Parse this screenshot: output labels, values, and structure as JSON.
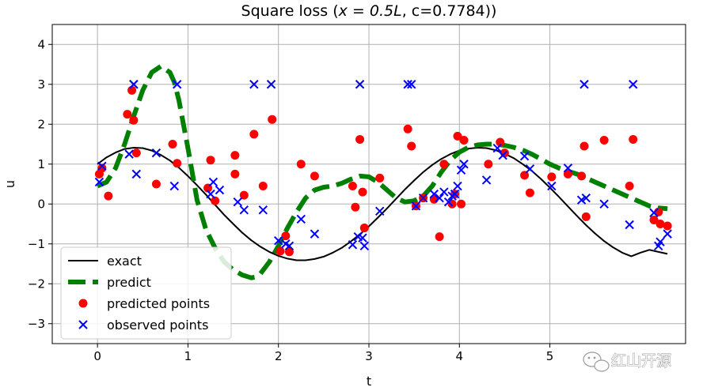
{
  "chart_data": {
    "type": "scatter",
    "title_prefix": "Square loss (",
    "title_math": "x = 0.5L",
    "title_suffix": ", c=0.7784))",
    "xlabel": "t",
    "ylabel": "u",
    "xlim": [
      -0.5,
      6.5
    ],
    "ylim": [
      -3.5,
      4.5
    ],
    "xticks": [
      0,
      1,
      2,
      3,
      4,
      5
    ],
    "yticks": [
      -3,
      -2,
      -1,
      0,
      1,
      2,
      3,
      4
    ],
    "xtick_labels": [
      "0",
      "1",
      "2",
      "3",
      "4",
      "5"
    ],
    "ytick_labels": [
      "−3",
      "−2",
      "−1",
      "0",
      "1",
      "2",
      "3",
      "4"
    ],
    "grid": true,
    "legend_position": "lower-left",
    "series": [
      {
        "name": "exact",
        "kind": "line",
        "color": "#000000",
        "x": [
          0.0,
          0.1,
          0.2,
          0.3,
          0.4,
          0.5,
          0.6,
          0.7,
          0.8,
          0.9,
          1.0,
          1.1,
          1.2,
          1.3,
          1.4,
          1.5,
          1.6,
          1.7,
          1.8,
          1.9,
          2.0,
          2.1,
          2.2,
          2.3,
          2.4,
          2.5,
          2.6,
          2.7,
          2.8,
          2.9,
          3.0,
          3.1,
          3.2,
          3.3,
          3.4,
          3.5,
          3.6,
          3.7,
          3.8,
          3.9,
          4.0,
          4.1,
          4.2,
          4.3,
          4.4,
          4.5,
          4.6,
          4.7,
          4.8,
          4.9,
          5.0,
          5.1,
          5.2,
          5.3,
          5.4,
          5.5,
          5.6,
          5.7,
          5.8,
          5.9,
          6.0,
          6.1,
          6.2,
          6.3
        ],
        "y": [
          1.0,
          1.17,
          1.29,
          1.38,
          1.41,
          1.4,
          1.34,
          1.23,
          1.09,
          0.91,
          0.7,
          0.47,
          0.23,
          -0.02,
          -0.27,
          -0.5,
          -0.72,
          -0.91,
          -1.07,
          -1.2,
          -1.3,
          -1.37,
          -1.41,
          -1.41,
          -1.38,
          -1.32,
          -1.22,
          -1.1,
          -0.94,
          -0.76,
          -0.56,
          -0.34,
          -0.11,
          0.13,
          0.37,
          0.59,
          0.8,
          0.98,
          1.13,
          1.25,
          1.34,
          1.39,
          1.41,
          1.4,
          1.35,
          1.26,
          1.15,
          1.0,
          0.83,
          0.63,
          0.41,
          0.18,
          -0.06,
          -0.3,
          -0.53,
          -0.74,
          -0.93,
          -1.09,
          -1.22,
          -1.31,
          -1.22,
          -1.15,
          -1.2,
          -1.25
        ]
      },
      {
        "name": "predict",
        "kind": "dashed-line",
        "color": "#008000",
        "x": [
          0.0,
          0.1,
          0.2,
          0.3,
          0.4,
          0.5,
          0.6,
          0.7,
          0.8,
          0.85,
          0.9,
          1.0,
          1.1,
          1.2,
          1.3,
          1.4,
          1.5,
          1.6,
          1.7,
          1.75,
          1.8,
          1.9,
          2.0,
          2.1,
          2.2,
          2.3,
          2.4,
          2.5,
          2.6,
          2.7,
          2.8,
          2.9,
          3.0,
          3.1,
          3.2,
          3.3,
          3.4,
          3.5,
          3.6,
          3.7,
          3.8,
          3.9,
          4.0,
          4.1,
          4.2,
          4.3,
          4.4,
          4.5,
          4.6,
          4.7,
          4.8,
          4.9,
          5.0,
          5.1,
          5.2,
          5.3,
          5.4,
          5.5,
          5.6,
          5.7,
          5.8,
          5.9,
          6.0,
          6.1,
          6.2,
          6.3
        ],
        "y": [
          0.45,
          0.55,
          0.9,
          1.5,
          2.2,
          2.85,
          3.3,
          3.45,
          3.3,
          3.05,
          2.6,
          1.4,
          0.1,
          -0.65,
          -1.1,
          -1.45,
          -1.65,
          -1.78,
          -1.85,
          -1.83,
          -1.75,
          -1.45,
          -1.05,
          -0.6,
          -0.2,
          0.15,
          0.35,
          0.42,
          0.45,
          0.52,
          0.62,
          0.7,
          0.68,
          0.55,
          0.35,
          0.15,
          0.05,
          0.08,
          0.2,
          0.45,
          0.8,
          1.1,
          1.3,
          1.42,
          1.48,
          1.5,
          1.5,
          1.47,
          1.42,
          1.35,
          1.25,
          1.13,
          1.0,
          0.9,
          0.82,
          0.75,
          0.65,
          0.55,
          0.45,
          0.35,
          0.25,
          0.15,
          0.05,
          -0.05,
          -0.1,
          -0.12
        ]
      },
      {
        "name": "predicted points",
        "kind": "points",
        "marker": "circle",
        "color": "#ff0000",
        "x": [
          0.02,
          0.05,
          0.12,
          0.33,
          0.38,
          0.4,
          0.43,
          0.65,
          0.83,
          0.88,
          1.25,
          1.22,
          1.3,
          1.52,
          1.52,
          1.62,
          1.73,
          1.83,
          1.93,
          2.02,
          2.08,
          2.12,
          2.25,
          2.4,
          2.82,
          2.85,
          2.9,
          2.93,
          2.95,
          3.12,
          3.43,
          3.47,
          3.52,
          3.6,
          3.72,
          3.78,
          3.83,
          3.92,
          3.95,
          3.98,
          4.02,
          4.05,
          4.32,
          4.45,
          4.5,
          4.72,
          4.78,
          5.02,
          5.2,
          5.35,
          5.38,
          5.4,
          5.6,
          5.88,
          5.92,
          6.15,
          6.2,
          6.22,
          6.3
        ],
        "y": [
          0.75,
          0.9,
          0.2,
          2.25,
          2.85,
          2.1,
          1.28,
          0.5,
          1.5,
          1.02,
          1.1,
          0.4,
          0.08,
          1.22,
          0.75,
          0.22,
          1.75,
          0.45,
          2.12,
          -1.18,
          -0.8,
          -1.2,
          1.0,
          0.7,
          0.45,
          -0.08,
          1.62,
          0.3,
          -0.6,
          0.65,
          1.88,
          1.45,
          -0.05,
          0.15,
          0.12,
          -0.82,
          1.0,
          0.0,
          0.25,
          1.7,
          0.0,
          1.6,
          1.0,
          1.55,
          1.28,
          0.72,
          0.28,
          0.68,
          0.75,
          0.7,
          1.45,
          -0.32,
          1.6,
          0.45,
          1.62,
          -0.4,
          -0.2,
          -0.5,
          -0.55
        ]
      },
      {
        "name": "observed points",
        "kind": "points",
        "marker": "x",
        "color": "#0000ff",
        "x": [
          0.02,
          0.05,
          0.35,
          0.4,
          0.43,
          0.4,
          0.65,
          0.85,
          0.88,
          1.25,
          1.28,
          1.35,
          1.55,
          1.62,
          1.73,
          1.83,
          1.92,
          2.0,
          2.08,
          2.12,
          2.25,
          2.4,
          2.82,
          2.88,
          2.9,
          2.93,
          2.95,
          3.12,
          3.43,
          3.47,
          3.52,
          3.6,
          3.72,
          3.78,
          3.83,
          3.88,
          3.92,
          3.95,
          3.98,
          4.02,
          4.05,
          4.3,
          4.42,
          4.48,
          4.72,
          4.78,
          5.02,
          5.2,
          5.35,
          5.38,
          5.4,
          5.6,
          5.88,
          5.92,
          6.15,
          6.2,
          6.22,
          6.3
        ],
        "y": [
          0.55,
          0.95,
          1.25,
          3.0,
          0.75,
          3.0,
          1.28,
          0.45,
          3.0,
          0.25,
          0.55,
          0.35,
          0.05,
          -0.15,
          3.0,
          -0.15,
          3.0,
          -0.92,
          -1.0,
          -1.05,
          -0.38,
          -0.75,
          -1.02,
          -0.82,
          3.0,
          -0.85,
          -1.05,
          -0.18,
          3.0,
          3.0,
          -0.05,
          0.15,
          0.25,
          0.15,
          0.3,
          0.05,
          0.2,
          0.25,
          0.45,
          0.85,
          1.0,
          0.6,
          1.4,
          1.22,
          1.2,
          0.88,
          0.45,
          0.9,
          0.1,
          3.0,
          0.15,
          0.0,
          -0.52,
          3.0,
          -0.22,
          -1.05,
          -0.95,
          -0.75
        ]
      }
    ],
    "watermark": {
      "text": "红山开源",
      "icon": "wechat-icon"
    }
  }
}
